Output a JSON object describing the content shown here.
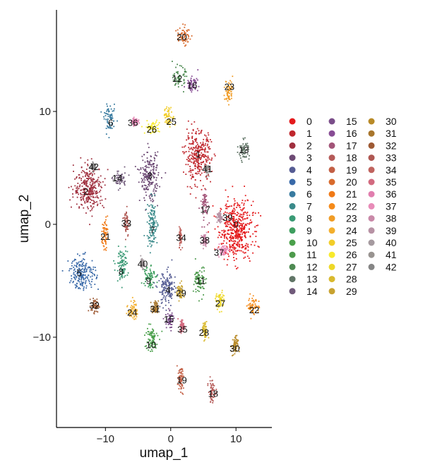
{
  "chart_data": {
    "type": "scatter",
    "xlabel": "umap_1",
    "ylabel": "umap_2",
    "xlim": [
      -17.5,
      15.5
    ],
    "ylim": [
      -18,
      19
    ],
    "x_ticks": [
      -10,
      0,
      10
    ],
    "y_ticks": [
      -10,
      0,
      10
    ],
    "x_tick_labels": [
      "−10",
      "0",
      "10"
    ],
    "y_tick_labels": [
      "−10",
      "0",
      "10"
    ],
    "grid": false,
    "legend_position": "right",
    "legend_columns": 3,
    "clusters": [
      {
        "id": "0",
        "color": "#E41A1C",
        "x": 10.0,
        "y": -0.5,
        "spread": [
          2.6,
          2.6
        ]
      },
      {
        "id": "1",
        "color": "#C0272D",
        "x": 4.2,
        "y": 6.0,
        "spread": [
          2.0,
          2.2
        ]
      },
      {
        "id": "2",
        "color": "#A0303F",
        "x": -12.5,
        "y": 3.2,
        "spread": [
          2.3,
          1.9
        ]
      },
      {
        "id": "3",
        "color": "#6D4A74",
        "x": -3.3,
        "y": 4.2,
        "spread": [
          1.4,
          2.1
        ]
      },
      {
        "id": "4",
        "color": "#555C93",
        "x": -0.6,
        "y": -5.8,
        "spread": [
          1.3,
          1.6
        ]
      },
      {
        "id": "5",
        "color": "#3969A8",
        "x": -13.5,
        "y": -4.3,
        "spread": [
          2.0,
          1.4
        ]
      },
      {
        "id": "6",
        "color": "#387BA0",
        "x": -9.3,
        "y": 9.3,
        "spread": [
          0.9,
          1.1
        ]
      },
      {
        "id": "7",
        "color": "#3A8A8A",
        "x": -2.8,
        "y": 0.0,
        "spread": [
          0.8,
          2.1
        ]
      },
      {
        "id": "8",
        "color": "#3A9A75",
        "x": -7.5,
        "y": -3.6,
        "spread": [
          0.9,
          1.4
        ]
      },
      {
        "id": "9",
        "color": "#3E9E5F",
        "x": -3.3,
        "y": -4.5,
        "spread": [
          0.9,
          1.1
        ]
      },
      {
        "id": "10",
        "color": "#4AA04B",
        "x": -3.0,
        "y": -10.2,
        "spread": [
          1.0,
          1.2
        ]
      },
      {
        "id": "11",
        "color": "#4D9A4C",
        "x": 4.5,
        "y": -5.0,
        "spread": [
          0.9,
          1.3
        ]
      },
      {
        "id": "12",
        "color": "#4E8A52",
        "x": 1.3,
        "y": 13.0,
        "spread": [
          0.9,
          0.9
        ]
      },
      {
        "id": "13",
        "color": "#607566",
        "x": 11.2,
        "y": 6.6,
        "spread": [
          0.8,
          0.9
        ]
      },
      {
        "id": "14",
        "color": "#705A7A",
        "x": -7.8,
        "y": 4.0,
        "spread": [
          1.0,
          0.8
        ]
      },
      {
        "id": "15",
        "color": "#7A4D89",
        "x": -0.2,
        "y": -8.5,
        "spread": [
          0.6,
          0.8
        ]
      },
      {
        "id": "16",
        "color": "#874C94",
        "x": 3.3,
        "y": 12.4,
        "spread": [
          0.9,
          0.6
        ]
      },
      {
        "id": "17",
        "color": "#A25478",
        "x": 5.2,
        "y": 1.7,
        "spread": [
          0.6,
          1.4
        ]
      },
      {
        "id": "18",
        "color": "#B55A58",
        "x": 6.3,
        "y": -14.8,
        "spread": [
          0.5,
          1.0
        ]
      },
      {
        "id": "19",
        "color": "#C35F45",
        "x": 1.5,
        "y": -13.8,
        "spread": [
          0.5,
          1.1
        ]
      },
      {
        "id": "20",
        "color": "#D86A2C",
        "x": 2.0,
        "y": 16.7,
        "spread": [
          1.0,
          0.8
        ]
      },
      {
        "id": "21",
        "color": "#F07916",
        "x": -10.1,
        "y": -0.8,
        "spread": [
          0.4,
          1.4
        ]
      },
      {
        "id": "22",
        "color": "#F58A19",
        "x": 12.7,
        "y": -7.2,
        "spread": [
          0.9,
          0.9
        ]
      },
      {
        "id": "23",
        "color": "#F09C26",
        "x": 8.9,
        "y": 11.8,
        "spread": [
          0.6,
          1.1
        ]
      },
      {
        "id": "24",
        "color": "#F3AF2C",
        "x": -5.8,
        "y": -7.6,
        "spread": [
          0.7,
          0.9
        ]
      },
      {
        "id": "25",
        "color": "#F2CD28",
        "x": -0.3,
        "y": 9.5,
        "spread": [
          0.8,
          0.8
        ]
      },
      {
        "id": "26",
        "color": "#F8EA2C",
        "x": -2.8,
        "y": 8.6,
        "spread": [
          1.1,
          0.6
        ]
      },
      {
        "id": "27",
        "color": "#EED828",
        "x": 7.6,
        "y": -6.8,
        "spread": [
          0.7,
          0.8
        ]
      },
      {
        "id": "28",
        "color": "#D9B92E",
        "x": 5.2,
        "y": -9.5,
        "spread": [
          0.4,
          0.8
        ]
      },
      {
        "id": "29",
        "color": "#C8A230",
        "x": 1.5,
        "y": -6.0,
        "spread": [
          0.5,
          0.8
        ]
      },
      {
        "id": "30",
        "color": "#B88A27",
        "x": 9.8,
        "y": -10.8,
        "spread": [
          0.5,
          0.9
        ]
      },
      {
        "id": "31",
        "color": "#A8762C",
        "x": -2.4,
        "y": -7.4,
        "spread": [
          0.5,
          0.6
        ]
      },
      {
        "id": "32",
        "color": "#9E5A34",
        "x": -11.6,
        "y": -7.2,
        "spread": [
          0.6,
          0.6
        ]
      },
      {
        "id": "33",
        "color": "#AF5752",
        "x": -6.8,
        "y": 0.2,
        "spread": [
          0.4,
          1.3
        ]
      },
      {
        "id": "34",
        "color": "#C0635E",
        "x": 1.5,
        "y": -1.1,
        "spread": [
          0.2,
          0.9
        ]
      },
      {
        "id": "35",
        "color": "#D26A7F",
        "x": 1.8,
        "y": -9.0,
        "spread": [
          0.4,
          0.6
        ]
      },
      {
        "id": "36",
        "color": "#E17EAE",
        "x": -5.5,
        "y": 9.1,
        "spread": [
          0.5,
          0.3
        ]
      },
      {
        "id": "37",
        "color": "#E88CB8",
        "x": 8.0,
        "y": -2.3,
        "spread": [
          0.8,
          0.5
        ]
      },
      {
        "id": "38",
        "color": "#C989A8",
        "x": 5.2,
        "y": -1.4,
        "spread": [
          0.4,
          0.5
        ]
      },
      {
        "id": "39",
        "color": "#B792A4",
        "x": 7.5,
        "y": 0.6,
        "spread": [
          0.4,
          0.5
        ]
      },
      {
        "id": "40",
        "color": "#A59A9F",
        "x": -4.3,
        "y": -3.5,
        "spread": [
          0.3,
          0.4
        ]
      },
      {
        "id": "41",
        "color": "#989390",
        "x": 5.5,
        "y": 4.9,
        "spread": [
          0.3,
          0.5
        ]
      },
      {
        "id": "42",
        "color": "#858585",
        "x": -11.8,
        "y": 5.1,
        "spread": [
          0.4,
          0.4
        ]
      }
    ],
    "label_positions": {
      "0": [
        10.0,
        0.0
      ],
      "1": [
        4.2,
        6.2
      ],
      "2": [
        -13.0,
        2.9
      ],
      "3": [
        -3.2,
        4.3
      ],
      "4": [
        -0.4,
        -5.8
      ],
      "5": [
        -14.0,
        -4.3
      ],
      "6": [
        -9.2,
        9.0
      ],
      "7": [
        -2.8,
        -0.5
      ],
      "8": [
        -7.6,
        -4.2
      ],
      "9": [
        -3.4,
        -5.0
      ],
      "10": [
        -3.0,
        -10.7
      ],
      "11": [
        4.6,
        -5.0
      ],
      "12": [
        1.0,
        12.9
      ],
      "13": [
        11.2,
        6.6
      ],
      "14": [
        -8.2,
        4.1
      ],
      "15": [
        -0.3,
        -8.4
      ],
      "16": [
        3.3,
        12.3
      ],
      "17": [
        5.3,
        1.3
      ],
      "18": [
        6.5,
        -15.0
      ],
      "19": [
        1.7,
        -13.8
      ],
      "20": [
        1.7,
        16.6
      ],
      "21": [
        -10.0,
        -1.1
      ],
      "22": [
        12.8,
        -7.6
      ],
      "23": [
        9.0,
        12.2
      ],
      "24": [
        -5.9,
        -7.8
      ],
      "25": [
        0.1,
        9.1
      ],
      "26": [
        -2.9,
        8.4
      ],
      "27": [
        7.6,
        -7.0
      ],
      "28": [
        5.1,
        -9.6
      ],
      "29": [
        1.6,
        -6.1
      ],
      "30": [
        9.8,
        -11.0
      ],
      "31": [
        -2.4,
        -7.5
      ],
      "32": [
        -11.7,
        -7.2
      ],
      "33": [
        -6.8,
        0.1
      ],
      "34": [
        1.6,
        -1.2
      ],
      "35": [
        1.8,
        -9.3
      ],
      "36": [
        -5.8,
        9.0
      ],
      "37": [
        7.4,
        -2.5
      ],
      "38": [
        5.2,
        -1.4
      ],
      "39": [
        8.7,
        0.6
      ],
      "40": [
        -4.3,
        -3.5
      ],
      "41": [
        5.6,
        4.9
      ],
      "42": [
        -11.8,
        5.1
      ]
    }
  }
}
